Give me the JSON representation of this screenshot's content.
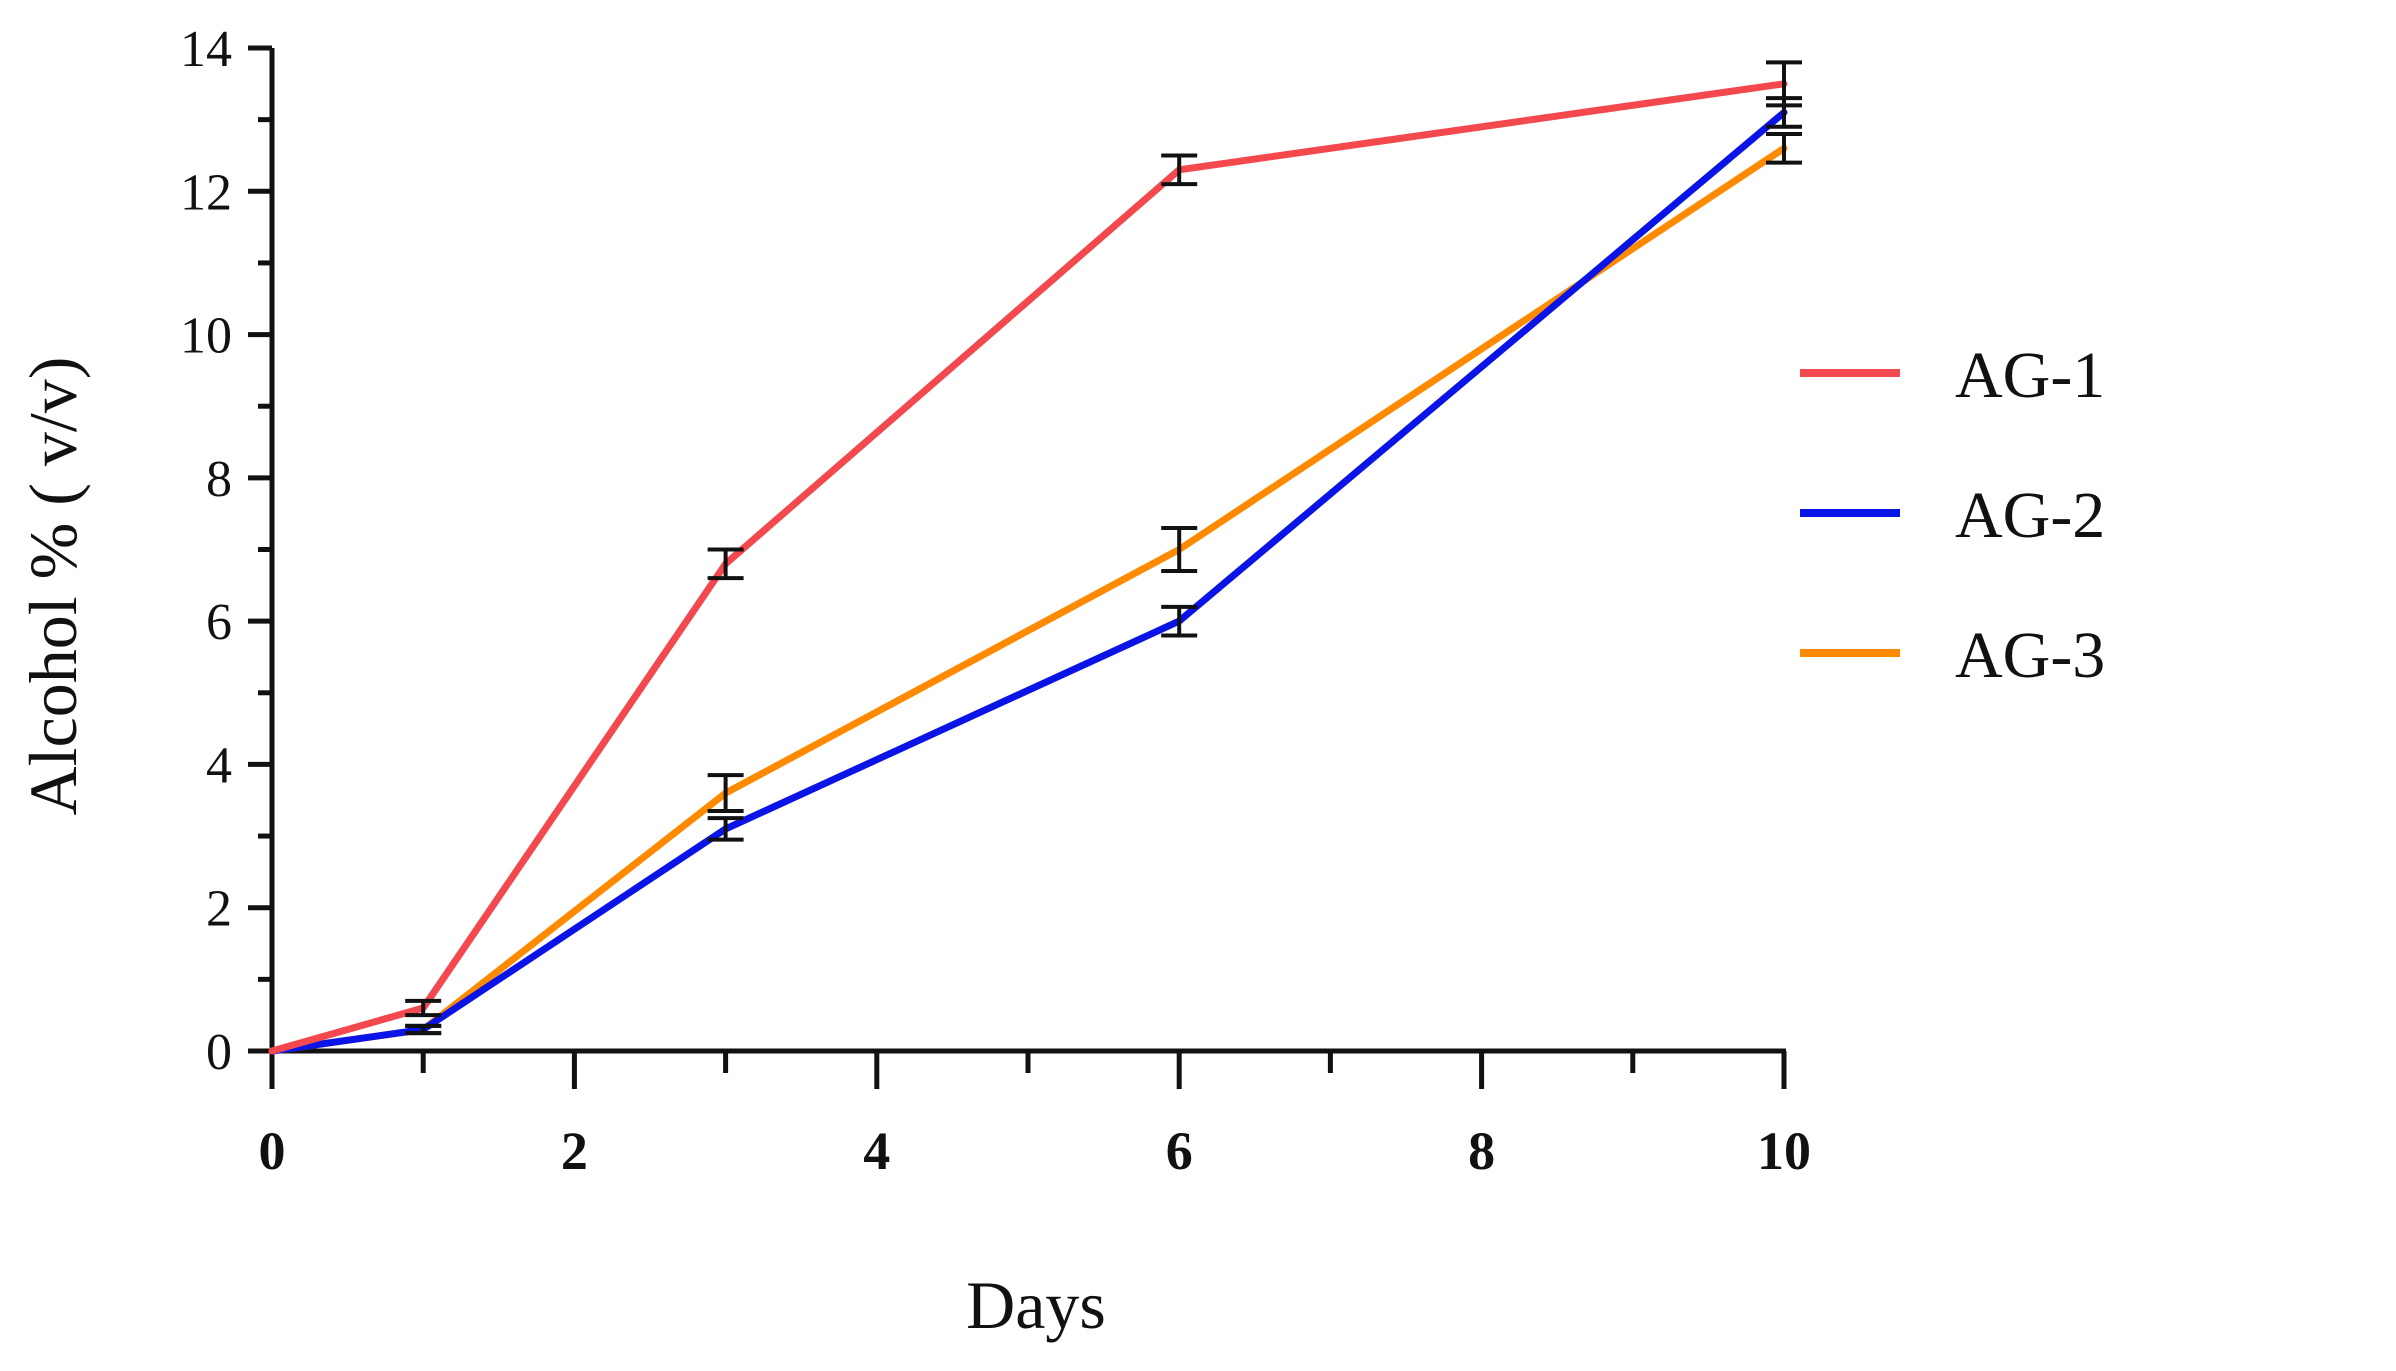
{
  "chart_data": {
    "type": "line",
    "title": "",
    "xlabel": "Days",
    "ylabel": "Alcohol % ( v/v)",
    "xlim": [
      0,
      10
    ],
    "ylim": [
      0,
      14
    ],
    "xticks": [
      "0",
      "2",
      "4",
      "6",
      "8",
      "10"
    ],
    "yticks": [
      "0",
      "2",
      "4",
      "6",
      "8",
      "10",
      "12",
      "14"
    ],
    "x": [
      0,
      1,
      3,
      6,
      10
    ],
    "grid": false,
    "legend_position": "right",
    "series": [
      {
        "name": "AG-1",
        "color": "#f4484f",
        "values": [
          0,
          0.6,
          6.8,
          12.3,
          13.5
        ],
        "errors": [
          0,
          0.1,
          0.2,
          0.2,
          0.3
        ]
      },
      {
        "name": "AG-2",
        "color": "#0a14e6",
        "values": [
          0,
          0.3,
          3.1,
          6.0,
          13.1
        ],
        "errors": [
          0,
          0.05,
          0.15,
          0.2,
          0.2
        ]
      },
      {
        "name": "AG-3",
        "color": "#ff8a00",
        "values": [
          0,
          0.3,
          3.6,
          7.0,
          12.6
        ],
        "errors": [
          0,
          0.05,
          0.25,
          0.3,
          0.2
        ]
      }
    ]
  }
}
